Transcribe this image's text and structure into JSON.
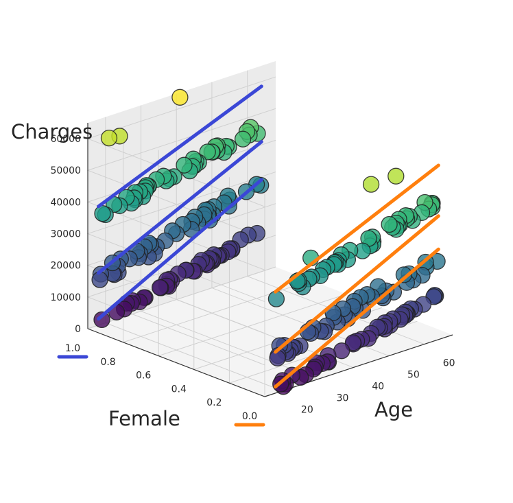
{
  "chart_data": {
    "type": "scatter",
    "dimensions": 3,
    "title": "",
    "xlabel": "Age",
    "ylabel": "Female",
    "zlabel": "Charges",
    "xlim": [
      15,
      68
    ],
    "ylim": [
      0,
      1
    ],
    "zlim": [
      0,
      65000
    ],
    "xticks": [
      "20",
      "30",
      "40",
      "50",
      "60"
    ],
    "yticks": [
      "0.0",
      "0.2",
      "0.4",
      "0.6",
      "0.8",
      "1.0"
    ],
    "zticks": [
      "0",
      "10000",
      "20000",
      "30000",
      "40000",
      "50000",
      "60000"
    ],
    "colormap": "viridis",
    "color_by": "charges",
    "grid": true,
    "highlight_ticks": {
      "1.0": "#3b47d6",
      "0.0": "#ff7f0e"
    },
    "point_groups": [
      {
        "female": 1,
        "tier": "low",
        "age_range": [
          18,
          64
        ],
        "charges_start": 1000,
        "charges_slope": 260,
        "spread": 2500
      },
      {
        "female": 1,
        "tier": "mid",
        "age_range": [
          18,
          64
        ],
        "charges_start": 15000,
        "charges_slope": 270,
        "spread": 5000
      },
      {
        "female": 1,
        "tier": "high",
        "age_range": [
          18,
          64
        ],
        "charges_start": 34000,
        "charges_slope": 260,
        "spread": 3500
      },
      {
        "female": 0,
        "tier": "low",
        "age_range": [
          18,
          64
        ],
        "charges_start": 1500,
        "charges_slope": 270,
        "spread": 2500
      },
      {
        "female": 0,
        "tier": "mid",
        "age_range": [
          18,
          64
        ],
        "charges_start": 12500,
        "charges_slope": 280,
        "spread": 5000
      },
      {
        "female": 0,
        "tier": "high",
        "age_range": [
          18,
          64
        ],
        "charges_start": 30000,
        "charges_slope": 310,
        "spread": 3500
      }
    ],
    "outliers": [
      {
        "x": 41,
        "y": 1,
        "z": 63500
      },
      {
        "x": 21,
        "y": 1,
        "z": 58000
      },
      {
        "x": 24,
        "y": 1,
        "z": 57500
      },
      {
        "x": 45,
        "y": 0,
        "z": 56000
      },
      {
        "x": 52,
        "y": 0,
        "z": 56000
      },
      {
        "x": 28,
        "y": 0,
        "z": 39000
      }
    ],
    "fit_lines": [
      {
        "female": 1,
        "color": "#3b47d6",
        "x": [
          18,
          64
        ],
        "z": [
          2000,
          29000
        ]
      },
      {
        "female": 1,
        "color": "#3b47d6",
        "x": [
          18,
          64
        ],
        "z": [
          16500,
          41000
        ]
      },
      {
        "female": 1,
        "color": "#3b47d6",
        "x": [
          18,
          64
        ],
        "z": [
          37500,
          58500
        ]
      },
      {
        "female": 0,
        "color": "#ff7f0e",
        "x": [
          18,
          64
        ],
        "z": [
          2000,
          28500
        ]
      },
      {
        "female": 0,
        "color": "#ff7f0e",
        "x": [
          18,
          64
        ],
        "z": [
          13000,
          39000
        ]
      },
      {
        "female": 0,
        "color": "#ff7f0e",
        "x": [
          18,
          64
        ],
        "z": [
          32000,
          55000
        ]
      }
    ]
  }
}
